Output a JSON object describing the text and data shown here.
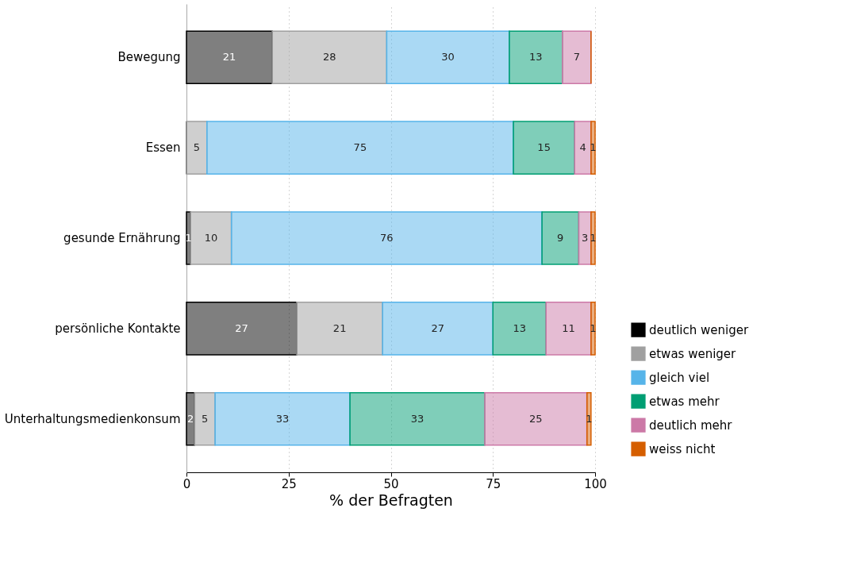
{
  "chart_data": {
    "type": "bar",
    "orientation": "horizontal",
    "stacked": true,
    "xlabel": "% der Befragten",
    "categories": [
      "Bewegung",
      "Essen",
      "gesunde Ernährung",
      "persönliche Kontakte",
      "Unterhaltungsmedienkonsum"
    ],
    "series": [
      {
        "name": "deutlich weniger",
        "color": "#000000",
        "values": [
          21,
          0,
          1,
          27,
          2
        ],
        "value_labels": [
          "21",
          null,
          "1",
          "27",
          "2"
        ]
      },
      {
        "name": "etwas weniger",
        "color": "#a0a0a0",
        "values": [
          28,
          5,
          10,
          21,
          5
        ],
        "value_labels": [
          "28",
          "5",
          "10",
          "21",
          "5"
        ]
      },
      {
        "name": "gleich viel",
        "color": "#56b4e9",
        "values": [
          30,
          75,
          76,
          27,
          33
        ],
        "value_labels": [
          "30",
          "75",
          "76",
          "27",
          "33"
        ]
      },
      {
        "name": "etwas mehr",
        "color": "#009e73",
        "values": [
          13,
          15,
          9,
          13,
          33
        ],
        "value_labels": [
          "13",
          "15",
          "9",
          "13",
          "33"
        ]
      },
      {
        "name": "deutlich mehr",
        "color": "#cc79a7",
        "values": [
          7,
          4,
          3,
          11,
          25
        ],
        "value_labels": [
          "7",
          "4",
          "3",
          "11",
          "25"
        ]
      },
      {
        "name": "weiss nicht",
        "color": "#d55e00",
        "values": [
          0,
          1,
          1,
          1,
          1
        ],
        "value_labels": [
          null,
          "1",
          "1",
          "1",
          "1"
        ]
      }
    ],
    "xlim": [
      0,
      100
    ],
    "xticks": [
      0,
      25,
      50,
      75,
      100
    ],
    "grid": "x",
    "legend": "right"
  }
}
